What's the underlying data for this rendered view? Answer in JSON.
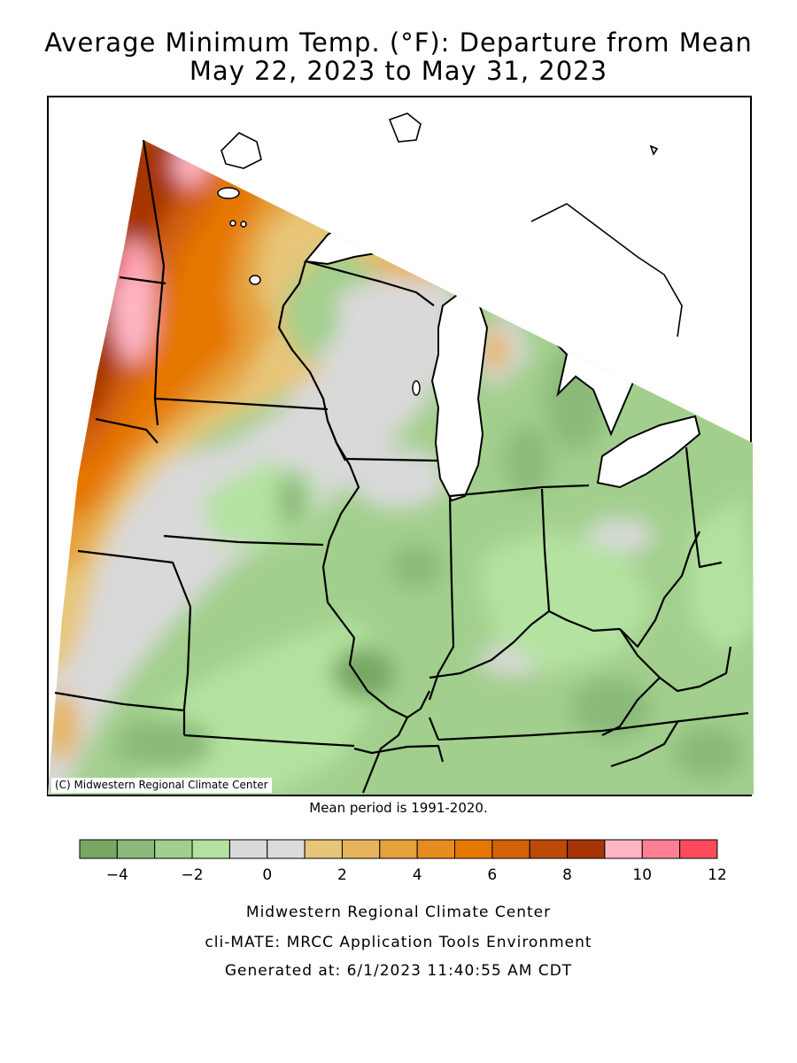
{
  "title": {
    "line1": "Average Minimum Temp. (°F): Departure from Mean",
    "line2": "May 22, 2023 to May 31, 2023"
  },
  "copyright": "(C) Midwestern Regional Climate Center",
  "mean_period": "Mean period is 1991-2020.",
  "legend": {
    "ticks": [
      "-4",
      "-2",
      "0",
      "2",
      "4",
      "6",
      "8",
      "10",
      "12"
    ],
    "bins": [
      {
        "color": "#77a763"
      },
      {
        "color": "#8bb979"
      },
      {
        "color": "#a2cf8d"
      },
      {
        "color": "#b4e2a0"
      },
      {
        "color": "#d9d9d9"
      },
      {
        "color": "#dbdbdb"
      },
      {
        "color": "#e8c679"
      },
      {
        "color": "#e6b45a"
      },
      {
        "color": "#e5a23a"
      },
      {
        "color": "#e68c1f"
      },
      {
        "color": "#e67700"
      },
      {
        "color": "#d26107"
      },
      {
        "color": "#bb4a06"
      },
      {
        "color": "#a63405"
      },
      {
        "color": "#ffb6c4"
      },
      {
        "color": "#ff8093"
      },
      {
        "color": "#ff4a5d"
      }
    ]
  },
  "footer": {
    "line1": "Midwestern Regional Climate Center",
    "line2": "cli-MATE: MRCC Application Tools Environment",
    "line3": "Generated at: 6/1/2023 11:40:55 AM CDT"
  },
  "colors": {
    "below_mean_dark": "#77a763",
    "below_mean_light": "#b4e2a0",
    "near_mean": "#d9d9d9",
    "above_mean_warm": "#e67700",
    "above_mean_hot": "#a63405",
    "extreme": "#ffb6c4",
    "water": "#ffffff"
  }
}
